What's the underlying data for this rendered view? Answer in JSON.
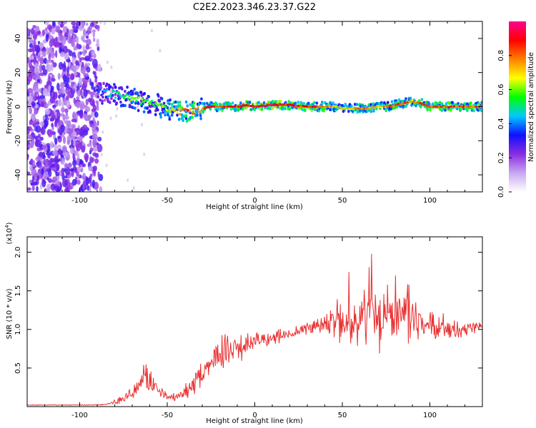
{
  "figure_title": "C2E2.2023.346.23.37.G22",
  "chart_data": [
    {
      "type": "heatmap",
      "title": "",
      "xlabel": "Height of straight line (km)",
      "ylabel": "Frequency (Hz)",
      "xlim": [
        -130,
        130
      ],
      "ylim": [
        -50,
        50
      ],
      "x_ticks": [
        -100,
        -50,
        0,
        50,
        100
      ],
      "y_ticks": [
        -40,
        -20,
        0,
        20,
        40
      ],
      "colorbar": {
        "label": "Normalized spectral amplitude",
        "range": [
          0.0,
          1.0
        ],
        "ticks": [
          0.0,
          0.2,
          0.4,
          0.6,
          0.8
        ],
        "tick_labels": [
          "0.0",
          "0.2",
          "0.4",
          "0.6",
          "0.8"
        ],
        "colors": [
          "#ffffff",
          "#c8a8f0",
          "#8a2be2",
          "#1010ff",
          "#00c8ff",
          "#00ff00",
          "#ffff00",
          "#ff8000",
          "#ff0000",
          "#ff0090"
        ],
        "placement": "right"
      },
      "ridge": {
        "x": [
          -90,
          -85,
          -80,
          -75,
          -70,
          -65,
          -60,
          -55,
          -50,
          -45,
          -40,
          -35,
          -30,
          -25,
          -20,
          -15,
          -10,
          -5,
          0,
          10,
          20,
          30,
          40,
          45,
          50,
          55,
          60,
          65,
          70,
          75,
          80,
          85,
          90,
          95,
          100,
          110,
          120,
          130
        ],
        "freq_hz": [
          8,
          8,
          7,
          6,
          5,
          3,
          2,
          1,
          -2,
          -2,
          -3,
          -3,
          -1,
          0,
          0,
          0,
          0,
          1,
          0,
          1,
          1,
          0,
          0,
          0,
          -1,
          -1,
          -1,
          -1,
          0,
          0,
          1,
          2,
          3,
          2,
          0,
          0,
          0,
          0
        ],
        "amplitude": [
          0.35,
          0.45,
          0.5,
          0.55,
          0.6,
          0.6,
          0.55,
          0.6,
          0.65,
          0.75,
          0.85,
          0.85,
          0.8,
          0.85,
          0.9,
          0.9,
          0.9,
          0.9,
          0.95,
          0.95,
          0.9,
          0.9,
          0.85,
          0.75,
          0.7,
          0.7,
          0.8,
          0.8,
          0.75,
          0.8,
          0.85,
          0.85,
          0.8,
          0.85,
          0.85,
          0.85,
          0.85,
          0.85
        ]
      },
      "noise_region_km": [
        -130,
        -88
      ],
      "grid": false
    },
    {
      "type": "line",
      "title": "",
      "xlabel": "Height of straight line (km)",
      "ylabel": "SNR (10 * v/v)",
      "y_multiplier": "(x10^4)",
      "xlim": [
        -130,
        130
      ],
      "ylim": [
        0,
        2.2
      ],
      "x_ticks": [
        -100,
        -50,
        0,
        50,
        100
      ],
      "y_ticks": [
        0.5,
        1.0,
        1.5,
        2.0
      ],
      "color": "#e83030",
      "grid": false,
      "series": [
        {
          "x": [
            -130,
            -110,
            -90,
            -85,
            -80,
            -75,
            -70,
            -65,
            -62,
            -60,
            -58,
            -55,
            -50,
            -45,
            -40,
            -35,
            -30,
            -25,
            -22,
            -20,
            -15,
            -10,
            -5,
            0,
            10,
            20,
            30,
            40,
            50,
            60,
            65,
            68,
            70,
            72,
            75,
            80,
            85,
            88,
            90,
            95,
            100,
            110,
            120,
            125,
            130
          ],
          "y": [
            0.02,
            0.02,
            0.02,
            0.03,
            0.06,
            0.1,
            0.18,
            0.3,
            0.45,
            0.35,
            0.28,
            0.22,
            0.12,
            0.12,
            0.18,
            0.3,
            0.45,
            0.55,
            0.65,
            0.7,
            0.72,
            0.75,
            0.8,
            0.85,
            0.9,
            0.95,
            1.02,
            1.08,
            1.1,
            1.1,
            1.12,
            1.35,
            1.1,
            1.1,
            1.1,
            1.08,
            1.1,
            1.3,
            1.1,
            1.05,
            1.02,
            1.0,
            1.0,
            1.02,
            1.05
          ],
          "spread": [
            0.005,
            0.005,
            0.005,
            0.01,
            0.03,
            0.06,
            0.1,
            0.15,
            0.2,
            0.15,
            0.1,
            0.08,
            0.05,
            0.06,
            0.1,
            0.15,
            0.2,
            0.22,
            0.25,
            0.25,
            0.2,
            0.18,
            0.15,
            0.12,
            0.1,
            0.08,
            0.08,
            0.15,
            0.3,
            0.4,
            0.4,
            0.45,
            0.4,
            0.35,
            0.4,
            0.35,
            0.4,
            0.45,
            0.35,
            0.25,
            0.18,
            0.12,
            0.1,
            0.08,
            0.08
          ]
        }
      ]
    }
  ]
}
